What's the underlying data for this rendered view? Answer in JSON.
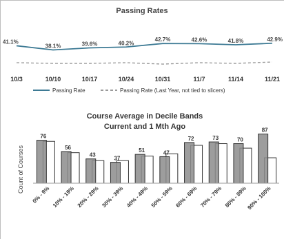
{
  "chart_data": [
    {
      "type": "line",
      "title": "Passing Rates",
      "x": [
        "10/3",
        "10/10",
        "10/17",
        "10/24",
        "10/31",
        "11/7",
        "11/14",
        "11/21"
      ],
      "series": [
        {
          "name": "Passing Rate",
          "values": [
            41.1,
            38.1,
            39.6,
            40.2,
            42.7,
            42.6,
            41.8,
            42.9
          ],
          "labels": [
            "41.1%",
            "38.1%",
            "39.6%",
            "40.2%",
            "42.7%",
            "42.6%",
            "41.8%",
            "42.9%"
          ]
        },
        {
          "name": "Passing Rate (Last Year, not tied to slicers)",
          "values": [
            29.0,
            28.5,
            28.5,
            29.0,
            28.0,
            29.0,
            28.5,
            29.5
          ]
        }
      ],
      "ylim": [
        0,
        60
      ],
      "legend": "bottom",
      "grid": false,
      "colors": {
        "current": "#3d7a94",
        "last_year": "#9a9a9a"
      }
    },
    {
      "type": "bar",
      "title": "Course Average in Decile Bands",
      "subtitle": "Current and 1 Mth Ago",
      "ylabel": "Count of Courses",
      "categories": [
        "0% - 9%",
        "10% - 19%",
        "20% - 29%",
        "30% - 39%",
        "40% - 49%",
        "50% - 59%",
        "60% - 69%",
        "70% - 79%",
        "80% - 89%",
        "90% - 100%"
      ],
      "series": [
        {
          "values": [
            76,
            56,
            43,
            37,
            51,
            47,
            72,
            73,
            70,
            87
          ]
        },
        {
          "values": [
            74,
            54,
            40,
            40,
            48,
            52,
            67,
            70,
            62,
            45
          ]
        }
      ],
      "ylim": [
        0,
        95
      ],
      "grid": false,
      "colors": {
        "current_fill": "#8c8c8c",
        "previous_fill": "#ffffff",
        "outline": "#333333"
      }
    }
  ]
}
